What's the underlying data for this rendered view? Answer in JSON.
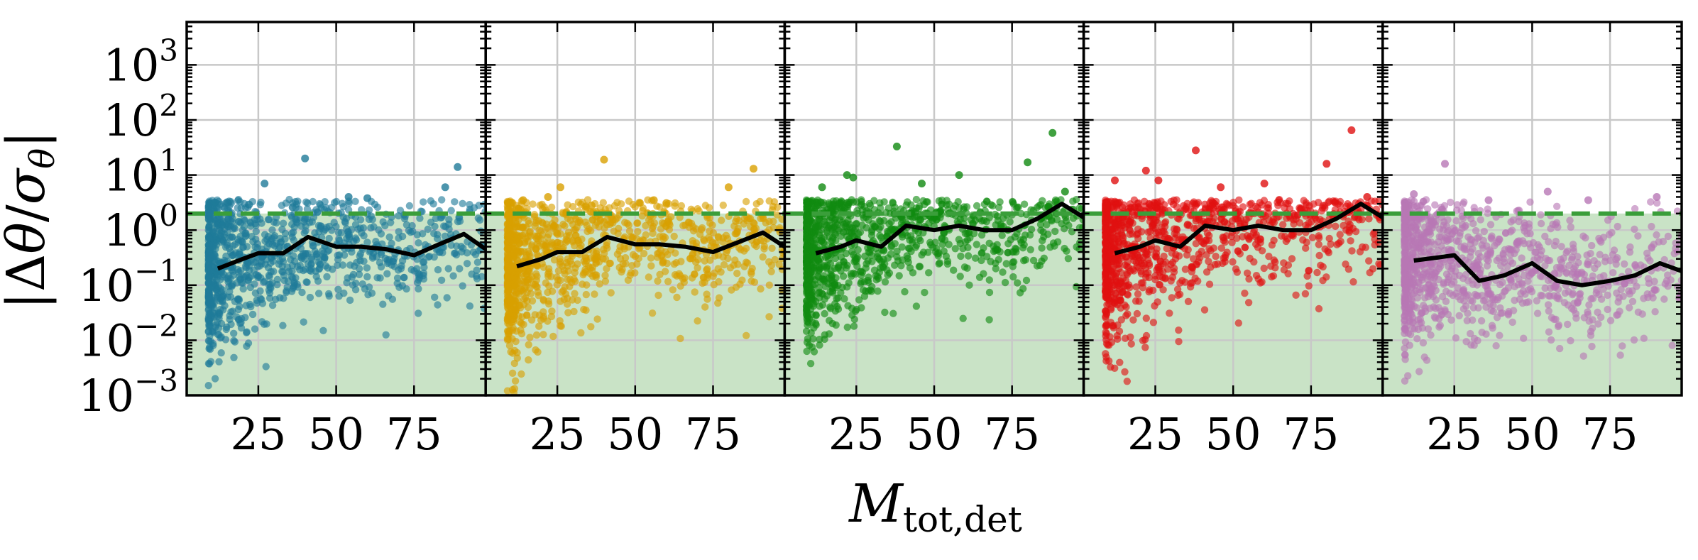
{
  "chart_data": {
    "type": "scatter",
    "panel_count": 5,
    "shared_y": true,
    "yscale": "log",
    "ylim": [
      0.001,
      6000
    ],
    "xlim": [
      2,
      98
    ],
    "xticks": [
      25,
      50,
      75
    ],
    "xtick_labels": [
      "25",
      "50",
      "75"
    ],
    "ytick_labels": [
      {
        "base": "10",
        "exp": "−3"
      },
      {
        "base": "10",
        "exp": "−2"
      },
      {
        "base": "10",
        "exp": "−1"
      },
      {
        "base": "10",
        "exp": "0"
      },
      {
        "base": "10",
        "exp": "1"
      },
      {
        "base": "10",
        "exp": "2"
      },
      {
        "base": "10",
        "exp": "3"
      }
    ],
    "yticks": [
      0.001,
      0.01,
      0.1,
      1,
      10,
      100,
      1000
    ],
    "ylabel": {
      "pre": "|Δ",
      "var": "θ",
      "mid": "/",
      "sigma": "σ",
      "sub": "θ",
      "post": "|"
    },
    "xlabel": {
      "main": "M",
      "sub": "tot,det"
    },
    "threshold": {
      "value": 2.0,
      "color": "#3a9e3a",
      "style": "dashed",
      "shade_color": "#c9e3c6"
    },
    "grid": true,
    "panels": [
      {
        "color": "#1f7a99",
        "median_x": [
          12,
          20,
          25,
          33,
          41,
          50,
          58,
          66,
          75,
          83,
          91,
          98
        ],
        "median_y": [
          0.2,
          0.3,
          0.38,
          0.38,
          0.75,
          0.5,
          0.5,
          0.45,
          0.35,
          0.55,
          0.85,
          0.45
        ],
        "outliers": [
          [
            15,
            3.2
          ],
          [
            22,
            2.9
          ],
          [
            27,
            7.0
          ],
          [
            36,
            2.6
          ],
          [
            40,
            20
          ],
          [
            54,
            4.0
          ],
          [
            60,
            3.8
          ],
          [
            85,
            6.0
          ],
          [
            89,
            14
          ]
        ]
      },
      {
        "color": "#d9a000",
        "median_x": [
          12,
          20,
          25,
          33,
          41,
          50,
          58,
          66,
          75,
          83,
          91,
          98
        ],
        "median_y": [
          0.22,
          0.3,
          0.4,
          0.4,
          0.75,
          0.55,
          0.55,
          0.5,
          0.4,
          0.6,
          0.9,
          0.5
        ],
        "outliers": [
          [
            14,
            3.5
          ],
          [
            22,
            4.0
          ],
          [
            26,
            6.0
          ],
          [
            36,
            2.8
          ],
          [
            40,
            19
          ],
          [
            56,
            3.5
          ],
          [
            60,
            3.1
          ],
          [
            80,
            6.0
          ],
          [
            88,
            13
          ]
        ]
      },
      {
        "color": "#108a10",
        "median_x": [
          12,
          20,
          25,
          33,
          41,
          50,
          58,
          66,
          75,
          83,
          91,
          98
        ],
        "median_y": [
          0.38,
          0.5,
          0.65,
          0.5,
          1.2,
          1.0,
          1.2,
          1.0,
          1.0,
          1.6,
          3.0,
          1.7
        ],
        "outliers": [
          [
            14,
            6.0
          ],
          [
            22,
            10
          ],
          [
            24,
            9
          ],
          [
            38,
            33
          ],
          [
            46,
            7
          ],
          [
            58,
            10
          ],
          [
            80,
            17
          ],
          [
            88,
            58
          ],
          [
            92,
            5
          ]
        ]
      },
      {
        "color": "#e01010",
        "median_x": [
          12,
          20,
          25,
          33,
          41,
          50,
          58,
          66,
          75,
          83,
          91,
          98
        ],
        "median_y": [
          0.38,
          0.5,
          0.65,
          0.5,
          1.2,
          1.0,
          1.2,
          1.0,
          1.0,
          1.6,
          3.0,
          1.7
        ],
        "outliers": [
          [
            12,
            8
          ],
          [
            22,
            12
          ],
          [
            26,
            8
          ],
          [
            38,
            28
          ],
          [
            46,
            6
          ],
          [
            60,
            7
          ],
          [
            80,
            16
          ],
          [
            88,
            65
          ],
          [
            93,
            4
          ]
        ]
      },
      {
        "color": "#b877b5",
        "median_x": [
          12,
          20,
          25,
          33,
          41,
          50,
          58,
          66,
          75,
          83,
          91,
          98
        ],
        "median_y": [
          0.28,
          0.32,
          0.35,
          0.12,
          0.15,
          0.25,
          0.12,
          0.1,
          0.12,
          0.15,
          0.25,
          0.18
        ],
        "outliers": [
          [
            12,
            4.5
          ],
          [
            22,
            16
          ],
          [
            36,
            3.5
          ],
          [
            55,
            5
          ],
          [
            68,
            3.5
          ],
          [
            90,
            4
          ]
        ]
      }
    ]
  }
}
